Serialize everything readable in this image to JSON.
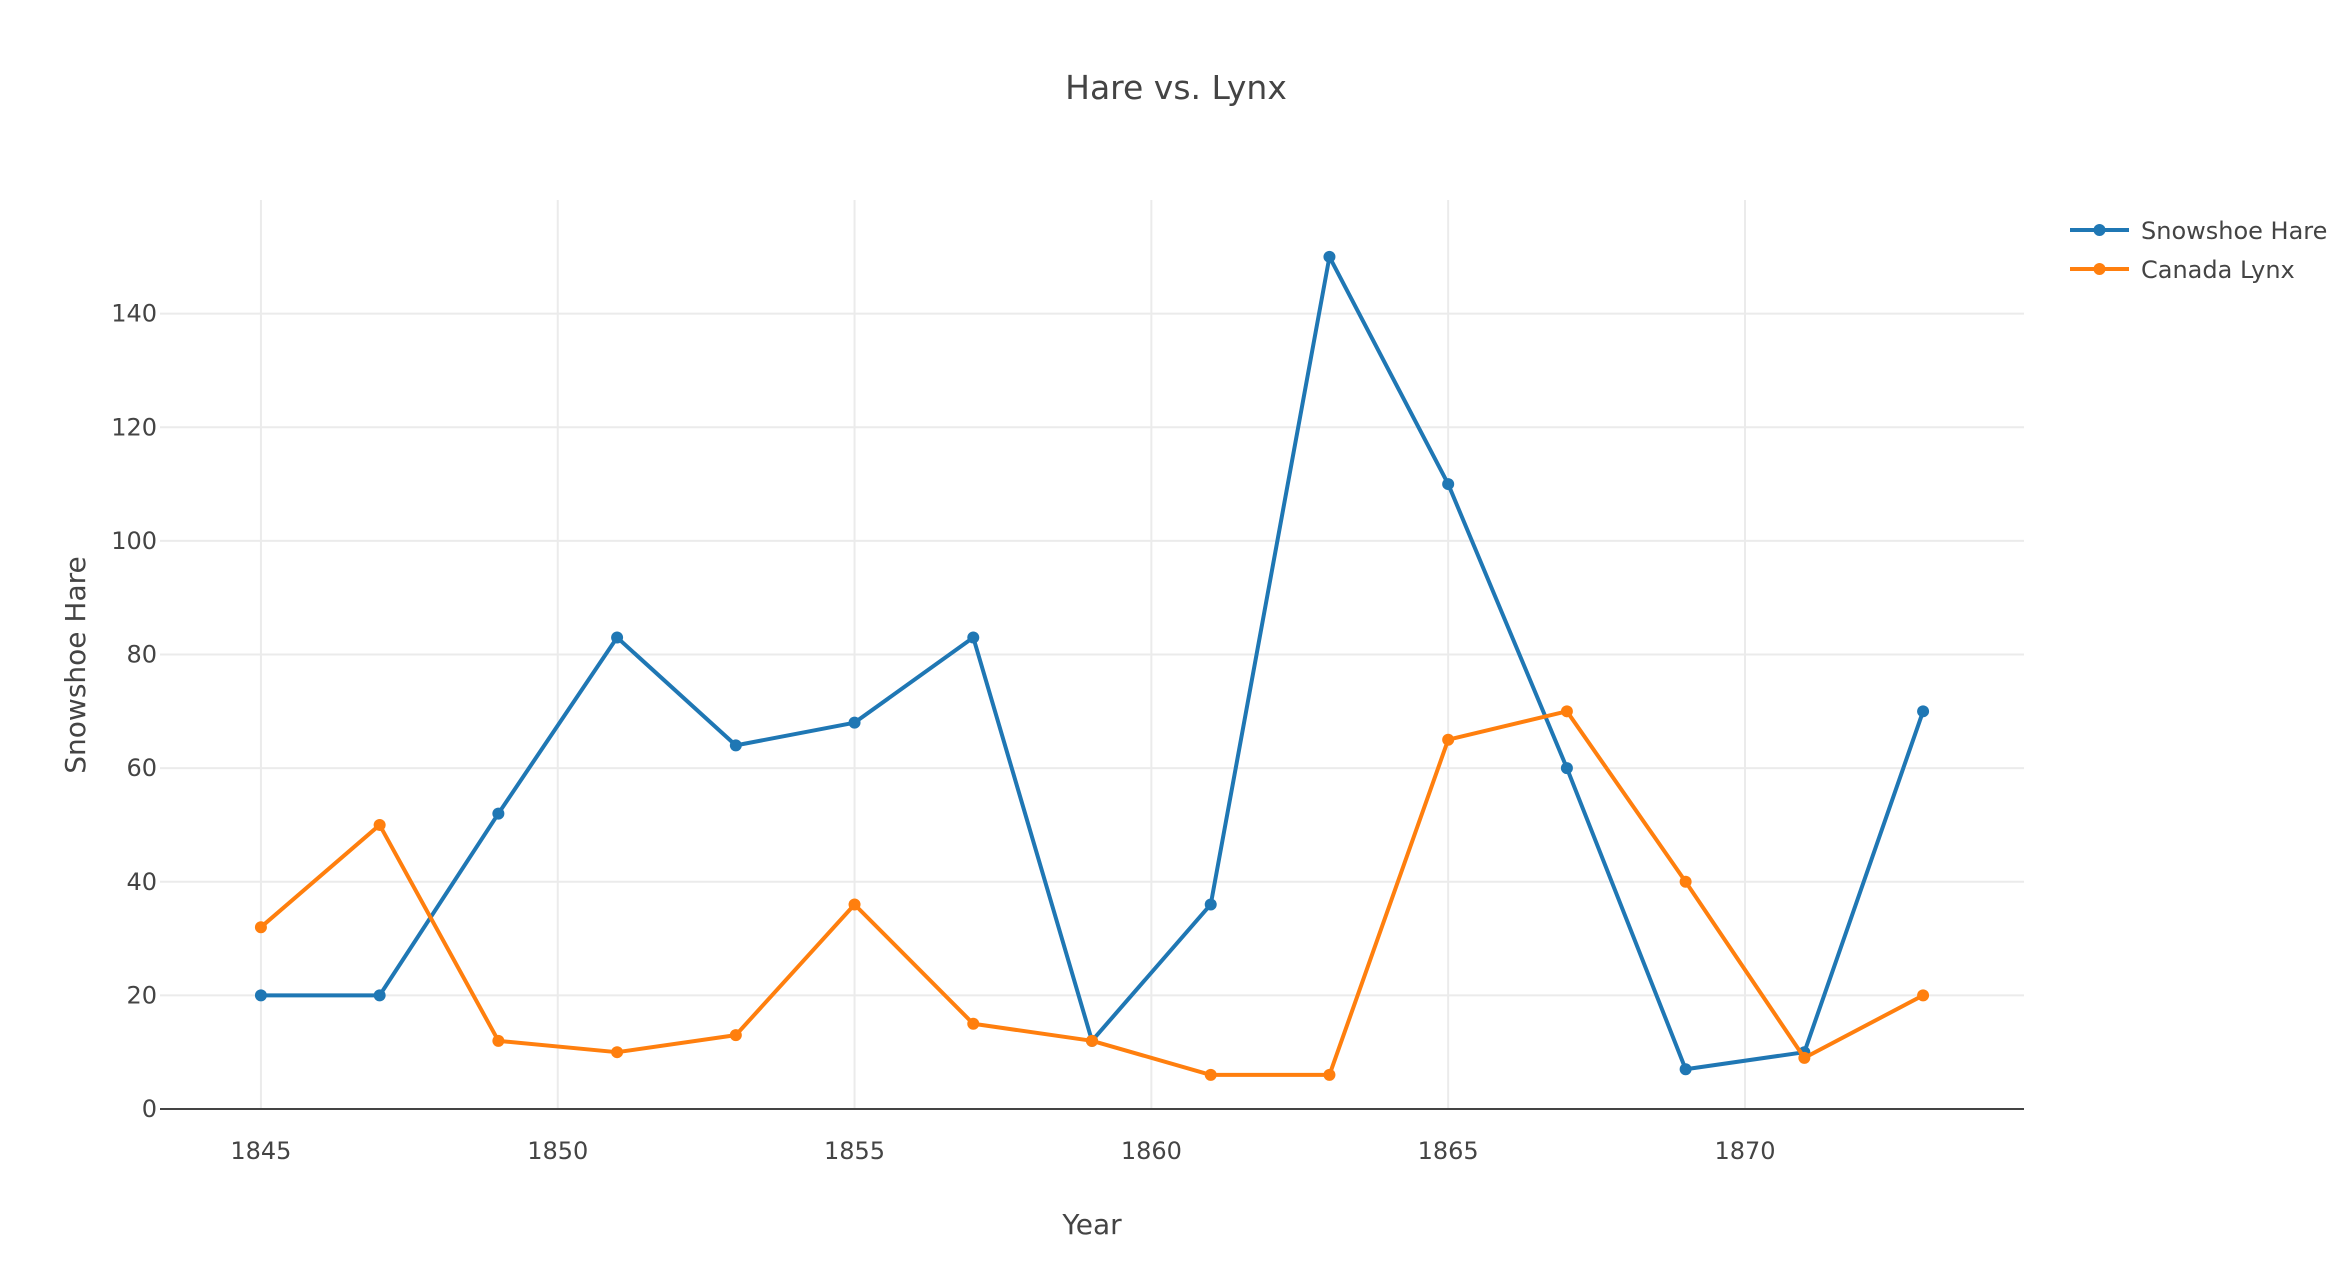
{
  "chart_data": {
    "type": "line",
    "title": "Hare vs. Lynx",
    "xlabel": "Year",
    "ylabel": "Snowshoe Hare",
    "x": [
      1845,
      1847,
      1849,
      1851,
      1853,
      1855,
      1857,
      1859,
      1861,
      1863,
      1865,
      1867,
      1869,
      1871,
      1873
    ],
    "series": [
      {
        "name": "Snowshoe Hare",
        "color": "#1f77b4",
        "values": [
          20,
          20,
          52,
          83,
          64,
          68,
          83,
          12,
          36,
          150,
          110,
          60,
          7,
          10,
          70
        ]
      },
      {
        "name": "Canada Lynx",
        "color": "#ff7f0e",
        "values": [
          32,
          50,
          12,
          10,
          13,
          36,
          15,
          12,
          6,
          6,
          65,
          70,
          40,
          9,
          20
        ]
      }
    ],
    "xlim": [
      1843.3,
      1874.7
    ],
    "ylim": [
      0,
      160
    ],
    "xticks": [
      1845,
      1850,
      1855,
      1860,
      1865,
      1870
    ],
    "yticks": [
      0,
      20,
      40,
      60,
      80,
      100,
      120,
      140
    ],
    "grid": true,
    "legend_position": "top-right"
  }
}
